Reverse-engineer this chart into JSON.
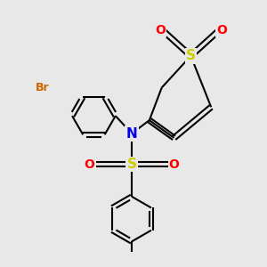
{
  "bg_color": "#e8e8e8",
  "atom_colors": {
    "Br": "#cc6600",
    "N": "#0000ee",
    "S": "#cccc00",
    "O": "#ff0000",
    "C": "#000000"
  },
  "bond_color": "#000000",
  "bond_lw": 1.5,
  "font_size_large": 10,
  "font_size_small": 9
}
